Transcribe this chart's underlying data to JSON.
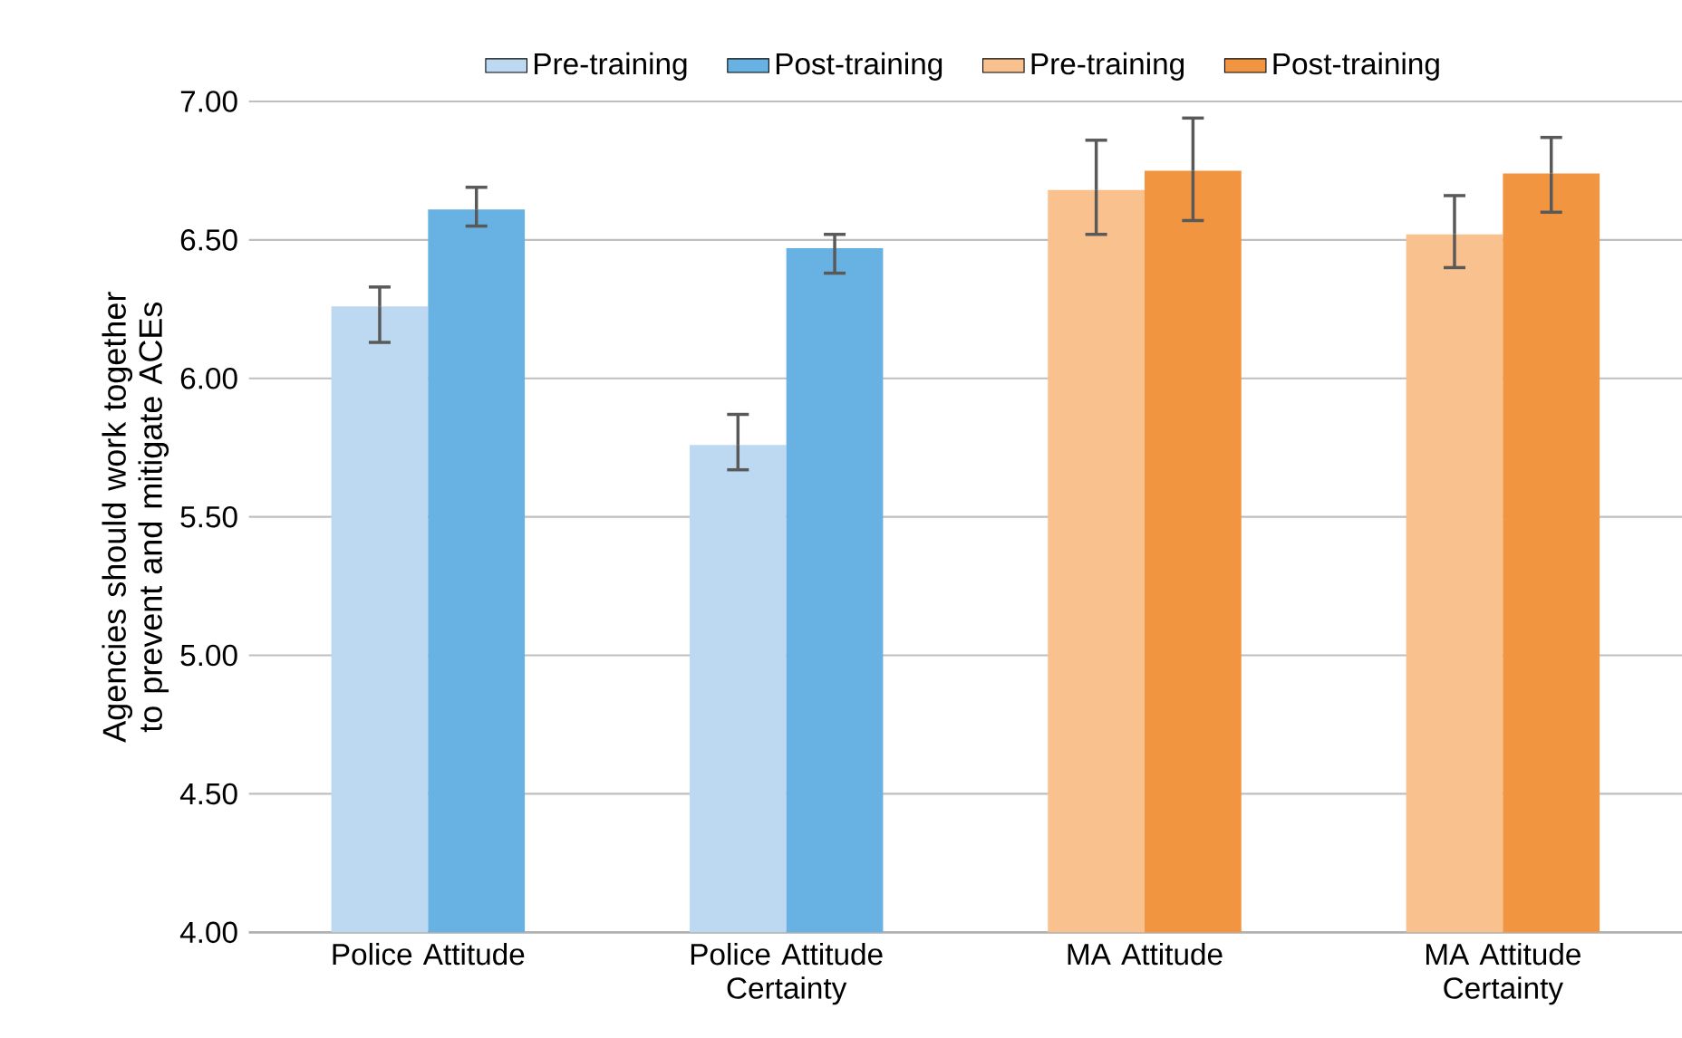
{
  "chart_data": {
    "type": "bar",
    "ylabel": "Agencies should work together to prevent and mitigate ACEs",
    "categories": [
      "Police Attitude",
      "Police Attitude Certainty",
      "MA Attitude",
      "MA Attitude Certainty"
    ],
    "series": [
      {
        "name": "Pre-training",
        "color": "#bdd9f2",
        "values": [
          6.26,
          5.76,
          null,
          null
        ],
        "errors": [
          [
            6.13,
            6.33
          ],
          [
            5.67,
            5.87
          ],
          null,
          null
        ]
      },
      {
        "name": "Post-training",
        "color": "#67b2e3",
        "values": [
          6.61,
          6.47,
          null,
          null
        ],
        "errors": [
          [
            6.55,
            6.69
          ],
          [
            6.38,
            6.52
          ],
          null,
          null
        ]
      },
      {
        "name": "Pre-training",
        "color": "#f8c18d",
        "values": [
          null,
          null,
          6.68,
          6.52
        ],
        "errors": [
          null,
          null,
          [
            6.52,
            6.86
          ],
          [
            6.4,
            6.66
          ]
        ]
      },
      {
        "name": "Post-training",
        "color": "#f29540",
        "values": [
          null,
          null,
          6.75,
          6.74
        ],
        "errors": [
          null,
          null,
          [
            6.57,
            6.94
          ],
          [
            6.6,
            6.87
          ]
        ]
      }
    ],
    "ylim": [
      4,
      7
    ],
    "yticks": [
      {
        "value": 4,
        "label": "4.00"
      },
      {
        "value": 4.5,
        "label": "4.50"
      },
      {
        "value": 5,
        "label": "5.00"
      },
      {
        "value": 5.5,
        "label": "5.50"
      },
      {
        "value": 6,
        "label": "6.00"
      },
      {
        "value": 6.5,
        "label": "6.50"
      },
      {
        "value": 7,
        "label": "7.00"
      }
    ],
    "grid": "y",
    "legend": "top"
  }
}
